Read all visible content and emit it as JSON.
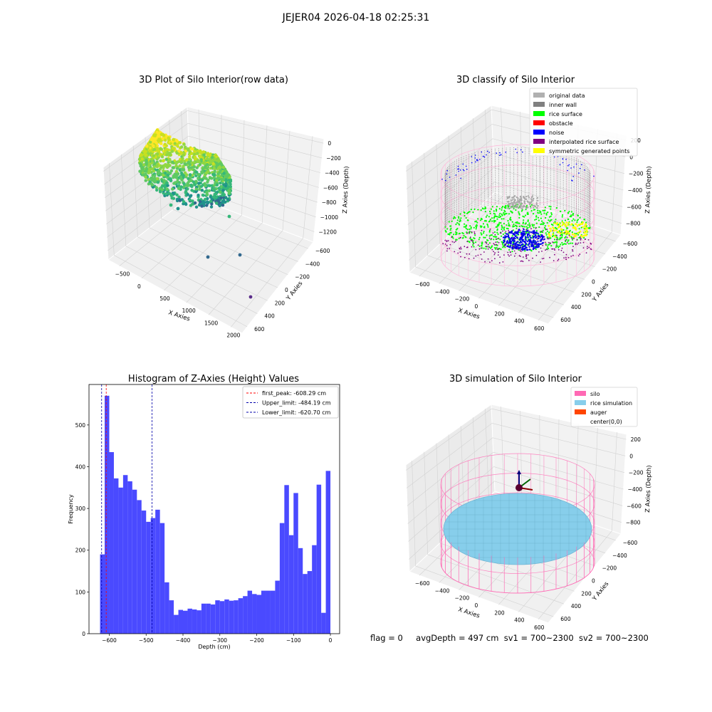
{
  "figure": {
    "suptitle": "JEJER04 2026-04-18 02:25:31",
    "status": {
      "flag": "flag = 0",
      "avg_depth": "avgDepth = 497 cm",
      "sv1": "sv1 = 700~2300",
      "sv2": "sv2 = 700~2300"
    }
  },
  "chart_data": [
    {
      "type": "scatter",
      "projection": "3d",
      "title": "3D Plot of Silo Interior(row data)",
      "xlabel": "X Axies",
      "ylabel": "Y Axies",
      "zlabel": "Z Axies (Depth)",
      "x_ticks": [
        "−500",
        "0",
        "500",
        "1000",
        "1500",
        "2000"
      ],
      "y_ticks": [
        "−600",
        "−400",
        "−200",
        "0",
        "200",
        "400",
        "600"
      ],
      "z_ticks": [
        "0",
        "−200",
        "−400",
        "−600",
        "−800",
        "−1000",
        "−1200"
      ],
      "xlim": [
        -650,
        2100
      ],
      "ylim": [
        -650,
        650
      ],
      "zlim": [
        -1350,
        50
      ],
      "colormap": "viridis",
      "outliers": [
        {
          "x": 1050,
          "y": 450,
          "z": -300
        },
        {
          "x": 1500,
          "y": 200,
          "z": -900
        },
        {
          "x": 900,
          "y": -150,
          "z": -1150
        },
        {
          "x": 1900,
          "y": -300,
          "z": -1250
        }
      ],
      "grid": true
    },
    {
      "type": "scatter",
      "projection": "3d",
      "title": "3D classify of Silo Interior",
      "xlabel": "X Axies",
      "ylabel": "Y Axies",
      "zlabel": "Z Axies (Depth)",
      "x_ticks": [
        "−600",
        "−400",
        "−200",
        "0",
        "200",
        "400",
        "600"
      ],
      "y_ticks": [
        "−600",
        "−400",
        "−200",
        "0",
        "200",
        "400",
        "600"
      ],
      "z_ticks": [
        "200",
        "0",
        "−200",
        "−400",
        "−600",
        "−800"
      ],
      "legend": [
        {
          "label": "original data",
          "color": "#b0b0b0"
        },
        {
          "label": "inner wall",
          "color": "#808080"
        },
        {
          "label": "rice surface",
          "color": "#00ff00"
        },
        {
          "label": "obstacle",
          "color": "#ff0000"
        },
        {
          "label": "noise",
          "color": "#0000ff"
        },
        {
          "label": "interpolated rice surface",
          "color": "#800080"
        },
        {
          "label": "symmetric generated points",
          "color": "#ffff00"
        }
      ],
      "legend_position": "top-right",
      "grid": true
    },
    {
      "type": "bar",
      "title": "Histogram of Z-Axies (Height) Values",
      "xlabel": "Depth (cm)",
      "ylabel": "Frequency",
      "bar_color": "#4a4aff",
      "bin_start": -625,
      "bin_width": 12.5,
      "frequencies": [
        190,
        570,
        435,
        372,
        350,
        380,
        365,
        345,
        320,
        295,
        268,
        277,
        297,
        265,
        123,
        80,
        45,
        57,
        55,
        60,
        58,
        56,
        72,
        72,
        70,
        80,
        78,
        82,
        79,
        80,
        85,
        90,
        103,
        95,
        93,
        103,
        103,
        103,
        127,
        265,
        356,
        236,
        337,
        205,
        143,
        150,
        212,
        357,
        50,
        390
      ],
      "xlim": [
        -655,
        25
      ],
      "ylim": [
        0,
        597
      ],
      "x_ticks": [
        -600,
        -500,
        -400,
        -300,
        -200,
        -100,
        0
      ],
      "y_ticks": [
        0,
        100,
        200,
        300,
        400,
        500
      ],
      "vlines": [
        {
          "x": -608.29,
          "color": "#ff0000",
          "label": "first_peak: -608.29 cm"
        },
        {
          "x": -484.19,
          "color": "#0000aa",
          "label": "Upper_limit: -484.19 cm"
        },
        {
          "x": -620.7,
          "color": "#0000aa",
          "label": "Lower_limit: -620.70 cm"
        }
      ],
      "legend_position": "top-right",
      "grid": false
    },
    {
      "type": "scatter",
      "projection": "3d",
      "title": "3D simulation of Silo Interior",
      "xlabel": "X Axies",
      "ylabel": "Y Axies",
      "zlabel": "Z Axies (Depth)",
      "x_ticks": [
        "−600",
        "−400",
        "−200",
        "0",
        "200",
        "400",
        "600"
      ],
      "y_ticks": [
        "−600",
        "−400",
        "−200",
        "0",
        "200",
        "400",
        "600"
      ],
      "z_ticks": [
        "200",
        "0",
        "−200",
        "−400",
        "−600",
        "−800"
      ],
      "legend": [
        {
          "label": "silo",
          "color": "#ff69b4"
        },
        {
          "label": "rice simulation",
          "color": "#87ceeb"
        },
        {
          "label": "auger",
          "color": "#ff4500"
        },
        {
          "label": "center(0,0)",
          "color": "#ffffff"
        }
      ],
      "legend_position": "top-right",
      "grid": true
    }
  ]
}
